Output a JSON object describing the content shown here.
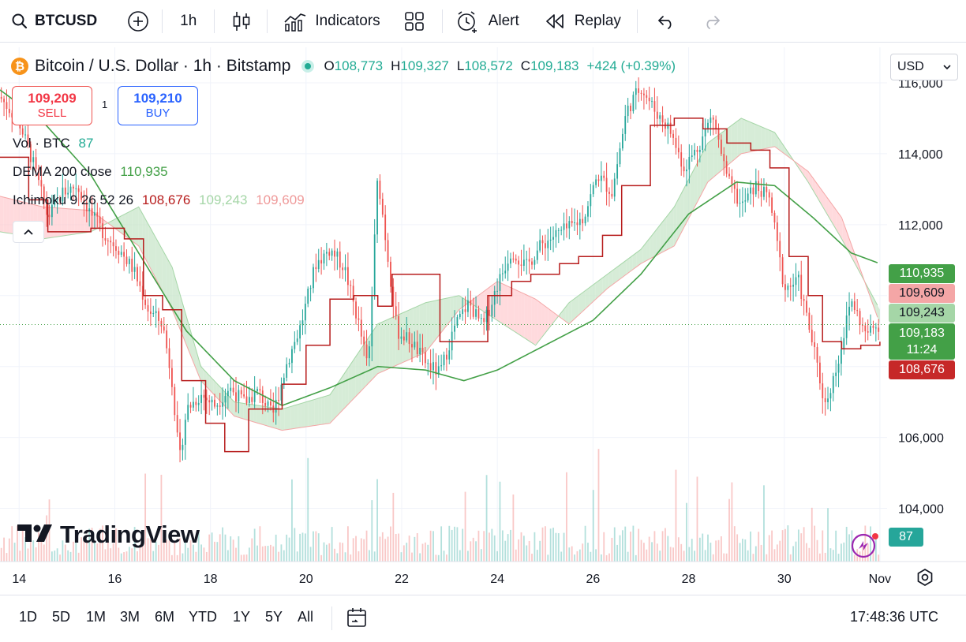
{
  "toolbar": {
    "symbol": "BTCUSD",
    "interval": "1h",
    "indicators_label": "Indicators",
    "alert_label": "Alert",
    "replay_label": "Replay"
  },
  "legend": {
    "title": "Bitcoin / U.S. Dollar · 1h · Bitstamp",
    "o_label": "O",
    "o": "108,773",
    "h_label": "H",
    "h": "109,327",
    "l_label": "L",
    "l": "108,572",
    "c_label": "C",
    "c": "109,183",
    "change": "+424 (+0.39%)",
    "currency": "USD"
  },
  "trade": {
    "sell_price": "109,209",
    "sell_label": "SELL",
    "spread": "1",
    "buy_price": "109,210",
    "buy_label": "BUY"
  },
  "indicators": {
    "vol_label": "Vol · BTC",
    "vol_value": "87",
    "dema_label": "DEMA 200 close",
    "dema_value": "110,935",
    "ichimoku_label": "Ichimoku 9 26 52 26",
    "ichimoku_v1": "108,676",
    "ichimoku_v2": "109,243",
    "ichimoku_v3": "109,609"
  },
  "price_scale": {
    "badges": [
      {
        "text": "110,935",
        "color": "#43a047"
      },
      {
        "text": "109,609",
        "color": "#f4a6a6",
        "text_color": "#131722"
      },
      {
        "text": "109,243",
        "color": "#a5d6a7",
        "text_color": "#131722"
      },
      {
        "text": "109,183",
        "color": "#43a047"
      },
      {
        "text": "11:24",
        "color": "#43a047"
      },
      {
        "text": "108,676",
        "color": "#c62828"
      }
    ],
    "volume_badge": "87"
  },
  "watermark": "TradingView",
  "bottom": {
    "ranges": [
      "1D",
      "5D",
      "1M",
      "3M",
      "6M",
      "YTD",
      "1Y",
      "5Y",
      "All"
    ],
    "time": "17:48:36 UTC"
  },
  "colors": {
    "up": "#26a69a",
    "down": "#ef5350",
    "dema": "#43a047",
    "conversion": "#b71c1c",
    "cloud_bull": "#c8e6c9",
    "cloud_bear": "#ffcdd2"
  },
  "chart_data": {
    "type": "candlestick",
    "y_ticks": [
      104000,
      106000,
      108000,
      110000,
      112000,
      114000,
      116000
    ],
    "y_tick_labels": [
      "104,000",
      "106,000",
      "108,000",
      "110,000",
      "112,000",
      "114,000",
      "116,000"
    ],
    "ylim": [
      102500,
      117000
    ],
    "x_ticks": [
      14,
      16,
      18,
      20,
      22,
      24,
      26,
      28,
      30,
      32
    ],
    "x_tick_labels": [
      "14",
      "16",
      "18",
      "20",
      "22",
      "24",
      "26",
      "28",
      "30",
      "Nov"
    ],
    "xlim": [
      13.6,
      32.15
    ],
    "last_price": 109183,
    "close_path": [
      [
        13.6,
        115.6
      ],
      [
        14.0,
        114.9
      ],
      [
        14.3,
        113.7
      ],
      [
        14.6,
        112.2
      ],
      [
        14.9,
        112.9
      ],
      [
        15.2,
        113.1
      ],
      [
        15.5,
        112.3
      ],
      [
        15.8,
        111.7
      ],
      [
        16.1,
        111.3
      ],
      [
        16.4,
        110.7
      ],
      [
        16.7,
        109.6
      ],
      [
        17.0,
        109.2
      ],
      [
        17.2,
        107.6
      ],
      [
        17.35,
        105.3
      ],
      [
        17.5,
        106.8
      ],
      [
        17.8,
        107.2
      ],
      [
        18.1,
        106.9
      ],
      [
        18.4,
        107.4
      ],
      [
        18.7,
        107.0
      ],
      [
        19.0,
        107.3
      ],
      [
        19.3,
        106.6
      ],
      [
        19.6,
        108.1
      ],
      [
        19.9,
        109.2
      ],
      [
        20.2,
        110.9
      ],
      [
        20.5,
        111.3
      ],
      [
        20.8,
        110.8
      ],
      [
        21.1,
        109.2
      ],
      [
        21.3,
        107.9
      ],
      [
        21.5,
        113.4
      ],
      [
        21.7,
        111.2
      ],
      [
        21.9,
        109.0
      ],
      [
        22.2,
        108.7
      ],
      [
        22.5,
        108.1
      ],
      [
        22.8,
        107.8
      ],
      [
        23.1,
        109.1
      ],
      [
        23.4,
        109.8
      ],
      [
        23.7,
        109.1
      ],
      [
        24.0,
        110.3
      ],
      [
        24.3,
        111.3
      ],
      [
        24.6,
        110.8
      ],
      [
        24.9,
        111.4
      ],
      [
        25.2,
        111.7
      ],
      [
        25.5,
        111.9
      ],
      [
        25.8,
        112.2
      ],
      [
        26.1,
        113.4
      ],
      [
        26.4,
        112.9
      ],
      [
        26.7,
        115.2
      ],
      [
        27.0,
        115.9
      ],
      [
        27.3,
        115.2
      ],
      [
        27.6,
        114.7
      ],
      [
        27.9,
        113.6
      ],
      [
        28.2,
        114.2
      ],
      [
        28.5,
        115.1
      ],
      [
        28.8,
        113.3
      ],
      [
        29.1,
        112.5
      ],
      [
        29.4,
        113.1
      ],
      [
        29.7,
        112.7
      ],
      [
        30.0,
        110.2
      ],
      [
        30.3,
        110.4
      ],
      [
        30.6,
        108.6
      ],
      [
        30.85,
        106.9
      ],
      [
        31.1,
        108.0
      ],
      [
        31.4,
        109.9
      ],
      [
        31.7,
        108.9
      ],
      [
        32.0,
        109.2
      ]
    ],
    "dema_200": [
      [
        13.6,
        115.8
      ],
      [
        14.5,
        114.9
      ],
      [
        15.5,
        113.4
      ],
      [
        16.5,
        111.2
      ],
      [
        17.5,
        109.0
      ],
      [
        18.5,
        107.6
      ],
      [
        19.5,
        106.9
      ],
      [
        20.5,
        107.4
      ],
      [
        21.5,
        108.0
      ],
      [
        22.5,
        107.9
      ],
      [
        23.3,
        107.6
      ],
      [
        24.0,
        107.9
      ],
      [
        25.0,
        108.6
      ],
      [
        26.0,
        109.3
      ],
      [
        27.0,
        110.6
      ],
      [
        28.0,
        112.3
      ],
      [
        29.0,
        113.2
      ],
      [
        29.8,
        113.1
      ],
      [
        30.6,
        112.2
      ],
      [
        31.4,
        111.2
      ],
      [
        32.0,
        110.9
      ]
    ],
    "conversion_line": [
      [
        13.6,
        113.9
      ],
      [
        14.2,
        112.7
      ],
      [
        14.6,
        111.8
      ],
      [
        15.5,
        111.9
      ],
      [
        16.2,
        111.6
      ],
      [
        16.6,
        110.0
      ],
      [
        17.0,
        109.6
      ],
      [
        17.4,
        107.6
      ],
      [
        17.9,
        106.4
      ],
      [
        18.3,
        105.6
      ],
      [
        18.8,
        106.8
      ],
      [
        19.5,
        107.5
      ],
      [
        20.0,
        108.6
      ],
      [
        20.5,
        109.9
      ],
      [
        21.0,
        110.0
      ],
      [
        21.5,
        109.7
      ],
      [
        21.8,
        110.6
      ],
      [
        22.3,
        110.6
      ],
      [
        22.8,
        108.7
      ],
      [
        23.4,
        108.7
      ],
      [
        23.8,
        110.0
      ],
      [
        24.3,
        110.4
      ],
      [
        24.7,
        110.6
      ],
      [
        25.3,
        110.9
      ],
      [
        25.7,
        111.1
      ],
      [
        26.2,
        111.7
      ],
      [
        26.6,
        113.1
      ],
      [
        27.2,
        114.8
      ],
      [
        27.7,
        115.0
      ],
      [
        28.3,
        114.7
      ],
      [
        28.8,
        114.3
      ],
      [
        29.3,
        114.1
      ],
      [
        29.7,
        113.6
      ],
      [
        30.1,
        111.1
      ],
      [
        30.5,
        110.0
      ],
      [
        30.8,
        108.7
      ],
      [
        31.2,
        108.5
      ],
      [
        31.6,
        108.6
      ],
      [
        32.0,
        108.7
      ]
    ],
    "cloud_a": [
      [
        13.6,
        111.8
      ],
      [
        14.5,
        111.6
      ],
      [
        15.5,
        111.8
      ],
      [
        16.5,
        112.5
      ],
      [
        17.2,
        110.8
      ],
      [
        17.8,
        108.0
      ],
      [
        18.5,
        107.0
      ],
      [
        19.5,
        106.8
      ],
      [
        20.5,
        107.2
      ],
      [
        21.5,
        109.2
      ],
      [
        22.5,
        109.8
      ],
      [
        23.2,
        110.0
      ],
      [
        24.0,
        109.3
      ],
      [
        24.8,
        108.6
      ],
      [
        25.5,
        109.8
      ],
      [
        26.3,
        110.6
      ],
      [
        27.0,
        111.3
      ],
      [
        27.7,
        112.5
      ],
      [
        28.4,
        114.3
      ],
      [
        29.1,
        115.0
      ],
      [
        29.8,
        114.6
      ],
      [
        30.5,
        113.2
      ],
      [
        31.2,
        111.6
      ],
      [
        32.0,
        109.6
      ]
    ],
    "cloud_b": [
      [
        13.6,
        112.8
      ],
      [
        14.5,
        112.5
      ],
      [
        15.5,
        112.4
      ],
      [
        16.5,
        111.4
      ],
      [
        17.2,
        109.6
      ],
      [
        17.8,
        107.6
      ],
      [
        18.5,
        106.6
      ],
      [
        19.5,
        106.2
      ],
      [
        20.5,
        106.4
      ],
      [
        21.5,
        107.8
      ],
      [
        22.5,
        108.4
      ],
      [
        23.2,
        109.6
      ],
      [
        24.0,
        110.4
      ],
      [
        24.8,
        109.9
      ],
      [
        25.5,
        109.2
      ],
      [
        26.3,
        110.2
      ],
      [
        27.0,
        110.9
      ],
      [
        27.7,
        111.4
      ],
      [
        28.4,
        113.2
      ],
      [
        29.1,
        114.0
      ],
      [
        29.8,
        114.2
      ],
      [
        30.5,
        113.5
      ],
      [
        31.2,
        112.2
      ],
      [
        32.0,
        109.2
      ]
    ]
  }
}
